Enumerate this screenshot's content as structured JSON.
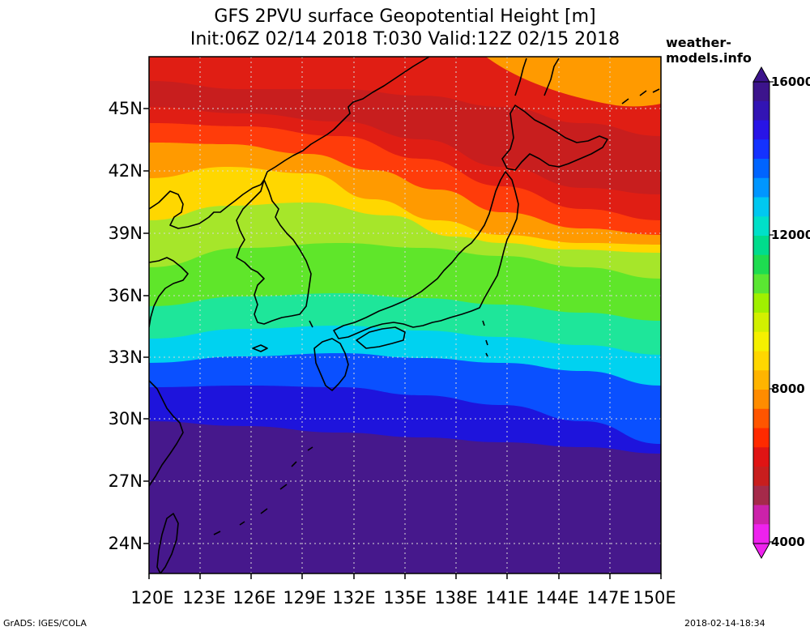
{
  "title_line1": "GFS 2PVU surface Geopotential Height [m]",
  "title_line2": "Init:06Z 02/14 2018 T:030 Valid:12Z 02/15 2018",
  "site": "weather-models.info",
  "credit": "GrADS: IGES/COLA",
  "timestamp": "2018-02-14-18:34",
  "lat_labels": [
    "45N",
    "42N",
    "39N",
    "36N",
    "33N",
    "30N",
    "27N",
    "24N"
  ],
  "lon_labels": [
    "120E",
    "123E",
    "126E",
    "129E",
    "132E",
    "135E",
    "138E",
    "141E",
    "144E",
    "147E",
    "150E"
  ],
  "colorbar": {
    "labels": [
      "16000",
      "12000",
      "8000",
      "4000"
    ],
    "colors": [
      "#ee22ee",
      "#cc22aa",
      "#a52a4a",
      "#c81e1e",
      "#e01414",
      "#ff2a00",
      "#ff5500",
      "#ff8c00",
      "#ffb400",
      "#ffd700",
      "#f5f000",
      "#d2f000",
      "#a0f000",
      "#5ae632",
      "#1edc50",
      "#00dc8c",
      "#00e0c8",
      "#00c8f0",
      "#0096ff",
      "#0064ff",
      "#1432ff",
      "#2814e6",
      "#3214b4",
      "#3c148c"
    ]
  },
  "map_colors": {
    "purple": "#46188c",
    "deep_blue": "#1e14dc",
    "blue": "#0a50ff",
    "cyan": "#00d2f0",
    "teal": "#1ee69a",
    "green": "#5fe62a",
    "lime": "#a6e62a",
    "yellow": "#ffd700",
    "orange": "#ff9a00",
    "red_orange": "#ff3c0a",
    "red": "#e01e14",
    "dark_red": "#c81e1e",
    "coast": "#000000"
  }
}
